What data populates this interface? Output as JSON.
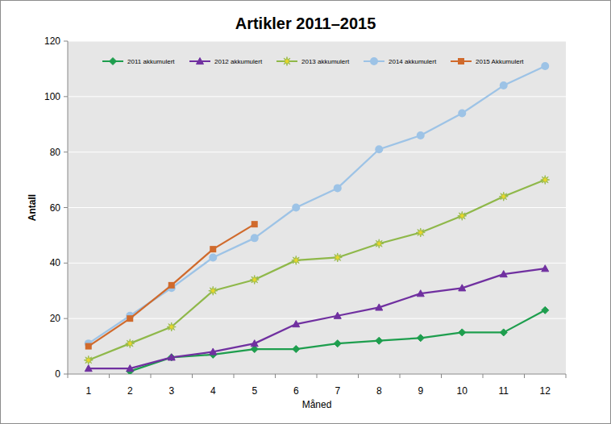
{
  "chart_data": {
    "type": "line",
    "title": "Artikler 2011–2015",
    "x_label": "Måned",
    "y_label": "Antall",
    "categories": [
      "1",
      "2",
      "3",
      "4",
      "5",
      "6",
      "7",
      "8",
      "9",
      "10",
      "11",
      "12"
    ],
    "ylim": [
      0,
      120
    ],
    "yticks": [
      0,
      20,
      40,
      60,
      80,
      100,
      120
    ],
    "grid": true,
    "legend": "top",
    "series": [
      {
        "name": "2011 akkumulert",
        "color": "#1e9e4e",
        "marker": "diamond",
        "values": [
          null,
          1,
          6,
          7,
          9,
          9,
          11,
          12,
          13,
          15,
          15,
          23
        ]
      },
      {
        "name": "2012 akkumulert",
        "color": "#7030a0",
        "marker": "triangle",
        "values": [
          2,
          2,
          6,
          8,
          11,
          18,
          21,
          24,
          29,
          31,
          36,
          38
        ]
      },
      {
        "name": "2013 akkumulert",
        "color": "#8fb84a",
        "marker": "star",
        "values": [
          5,
          11,
          17,
          30,
          34,
          41,
          42,
          47,
          51,
          57,
          64,
          70
        ]
      },
      {
        "name": "2014 akkumulert",
        "color": "#9dc3e6",
        "marker": "circle",
        "values": [
          11,
          21,
          31,
          42,
          49,
          60,
          67,
          81,
          86,
          94,
          104,
          111
        ]
      },
      {
        "name": "2015 Akkumulert",
        "color": "#d06a2c",
        "marker": "square",
        "values": [
          10,
          20,
          32,
          45,
          54,
          null,
          null,
          null,
          null,
          null,
          null,
          null
        ]
      }
    ]
  }
}
